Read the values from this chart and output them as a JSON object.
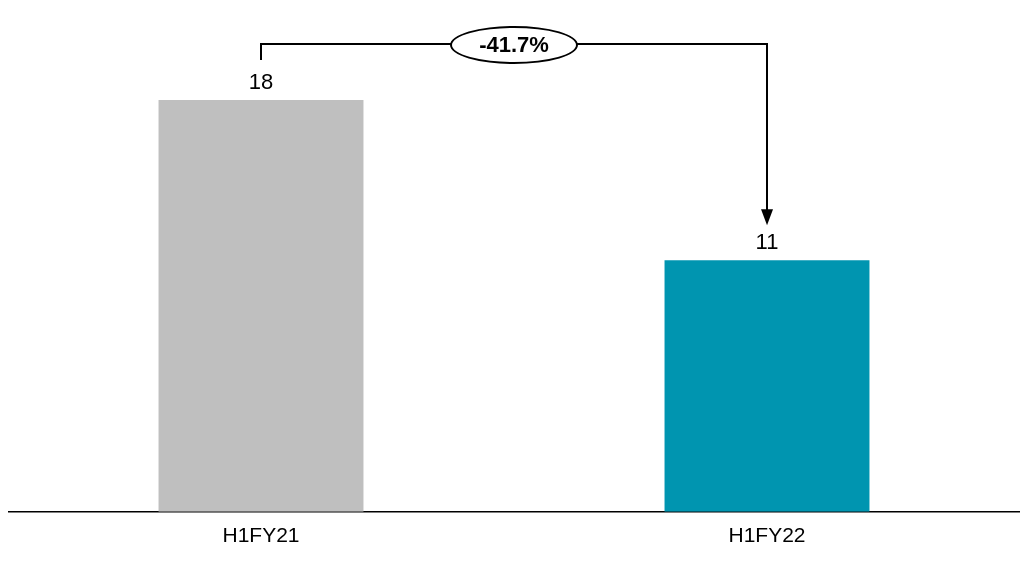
{
  "chart_data": {
    "type": "bar",
    "categories": [
      "H1FY21",
      "H1FY22"
    ],
    "values": [
      18,
      11
    ],
    "colors": [
      "#bfbfbf",
      "#0095b0"
    ],
    "tick_labels": "x",
    "data_labels": true,
    "legend": false,
    "grid": false,
    "annotations": [
      "-41.7%"
    ]
  }
}
